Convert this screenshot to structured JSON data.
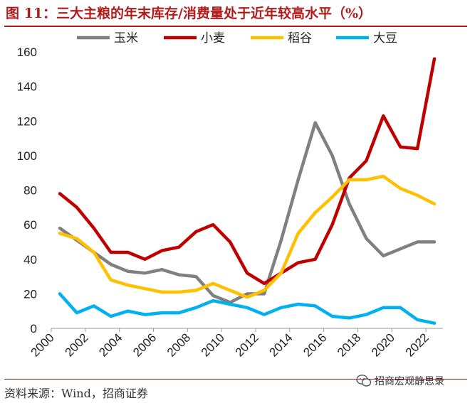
{
  "figure": {
    "title": "图 11：三大主粮的年末库存/消费量处于近年较高水平（%）",
    "source": "资料来源：Wind，招商证券",
    "watermark": "招商宏观静思录"
  },
  "chart_data": {
    "type": "line",
    "title": "三大主粮的年末库存/消费量处于近年较高水平（%）",
    "xlabel": "",
    "ylabel": "",
    "ylim": [
      0,
      160
    ],
    "yticks": [
      0,
      20,
      40,
      60,
      80,
      100,
      120,
      140,
      160
    ],
    "xlim": [
      2000,
      2023
    ],
    "xticks": [
      2000,
      2002,
      2004,
      2006,
      2008,
      2010,
      2012,
      2014,
      2016,
      2018,
      2020,
      2022
    ],
    "xtick_labels": [
      "2000",
      "2002",
      "2004",
      "2006",
      "2008",
      "2010",
      "2012",
      "2014",
      "2016",
      "2018",
      "2020",
      "2022"
    ],
    "legend_position": "top",
    "x": [
      2000.5,
      2001.5,
      2002.5,
      2003.5,
      2004.5,
      2005.5,
      2006.5,
      2007.5,
      2008.5,
      2009.5,
      2010.5,
      2011.5,
      2012.5,
      2013.5,
      2014.5,
      2015.5,
      2016.5,
      2017.5,
      2018.5,
      2019.5,
      2020.5,
      2021.5,
      2022.5
    ],
    "series": [
      {
        "name": "玉米",
        "color": "#808080",
        "values": [
          58,
          51,
          44,
          37,
          33,
          32,
          34,
          31,
          30,
          19,
          15,
          20,
          20,
          51,
          86,
          119,
          100,
          72,
          52,
          42,
          46,
          50,
          50
        ]
      },
      {
        "name": "小麦",
        "color": "#c00000",
        "values": [
          78,
          70,
          58,
          44,
          44,
          40,
          45,
          47,
          56,
          60,
          50,
          32,
          26,
          32,
          38,
          40,
          60,
          87,
          97,
          123,
          105,
          104,
          156
        ]
      },
      {
        "name": "稻谷",
        "color": "#ffc000",
        "values": [
          55,
          52,
          44,
          28,
          25,
          23,
          21,
          21,
          22,
          26,
          22,
          18,
          22,
          32,
          55,
          67,
          76,
          86,
          86,
          88,
          81,
          77,
          72
        ]
      },
      {
        "name": "大豆",
        "color": "#00b0f0",
        "values": [
          20,
          9,
          13,
          7,
          10,
          8,
          9,
          9,
          12,
          16,
          14,
          12,
          8,
          12,
          14,
          13,
          7,
          6,
          8,
          12,
          12,
          5,
          3
        ]
      }
    ]
  }
}
